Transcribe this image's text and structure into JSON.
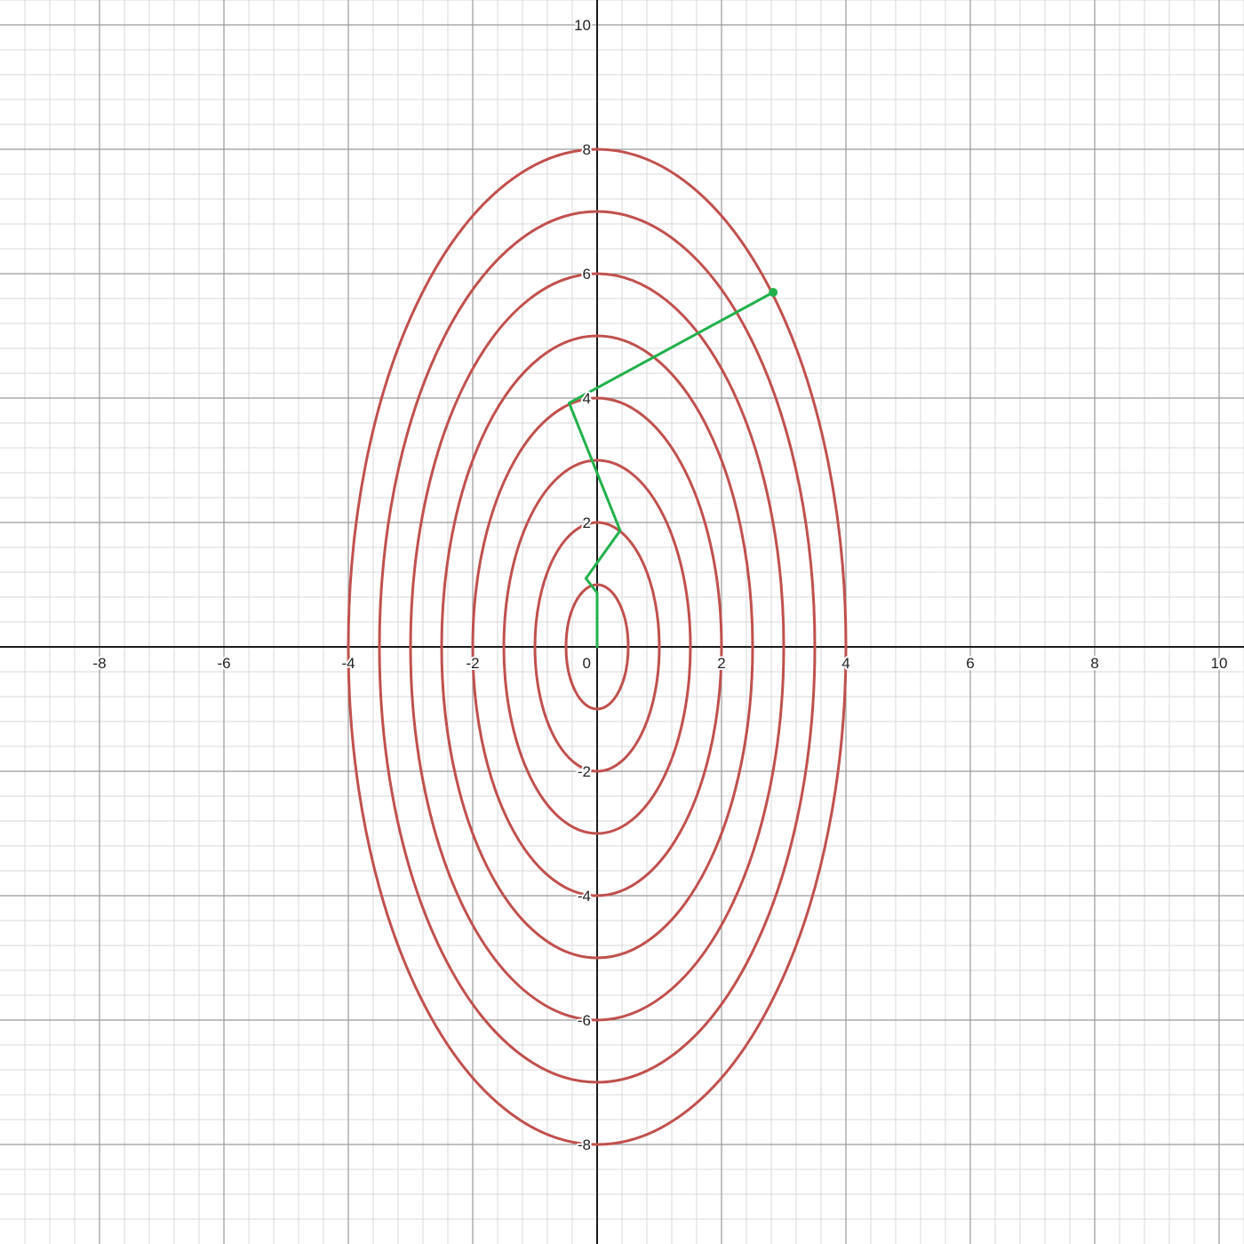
{
  "chart_data": {
    "type": "line",
    "title": "",
    "xlabel": "",
    "ylabel": "",
    "xlim": [
      -9.6,
      10.4
    ],
    "ylim": [
      -9.6,
      10.4
    ],
    "grid": true,
    "minor_grid_step": 0.4,
    "major_grid_step": 2,
    "x_ticks": [
      {
        "value": -8,
        "label": "-8"
      },
      {
        "value": -6,
        "label": "-6"
      },
      {
        "value": -4,
        "label": "-4"
      },
      {
        "value": -2,
        "label": "-2"
      },
      {
        "value": 2,
        "label": "2"
      },
      {
        "value": 4,
        "label": "4"
      },
      {
        "value": 6,
        "label": "6"
      },
      {
        "value": 8,
        "label": "8"
      },
      {
        "value": 10,
        "label": "10"
      }
    ],
    "y_ticks": [
      {
        "value": -8,
        "label": "-8"
      },
      {
        "value": -6,
        "label": "-6"
      },
      {
        "value": -4,
        "label": "-4"
      },
      {
        "value": -2,
        "label": "-2"
      },
      {
        "value": 2,
        "label": "2"
      },
      {
        "value": 4,
        "label": "4"
      },
      {
        "value": 6,
        "label": "6"
      },
      {
        "value": 8,
        "label": "8"
      },
      {
        "value": 10,
        "label": "10"
      }
    ],
    "origin_label": "0",
    "contours": {
      "color": "#c0504d",
      "ellipses": [
        {
          "semi_x": 0.5,
          "semi_y": 1
        },
        {
          "semi_x": 1,
          "semi_y": 2
        },
        {
          "semi_x": 1.5,
          "semi_y": 3
        },
        {
          "semi_x": 2,
          "semi_y": 4
        },
        {
          "semi_x": 2.5,
          "semi_y": 5
        },
        {
          "semi_x": 3,
          "semi_y": 6
        },
        {
          "semi_x": 3.5,
          "semi_y": 7
        },
        {
          "semi_x": 4,
          "semi_y": 8
        }
      ]
    },
    "path": {
      "color": "#22b14c",
      "points": [
        {
          "x": 0,
          "y": 0
        },
        {
          "x": 0,
          "y": 0.87
        },
        {
          "x": -0.18,
          "y": 1.1
        },
        {
          "x": 0.37,
          "y": 1.87
        },
        {
          "x": -0.45,
          "y": 3.92
        },
        {
          "x": 2.83,
          "y": 5.7
        }
      ],
      "end_marker": {
        "x": 2.83,
        "y": 5.7
      }
    }
  }
}
